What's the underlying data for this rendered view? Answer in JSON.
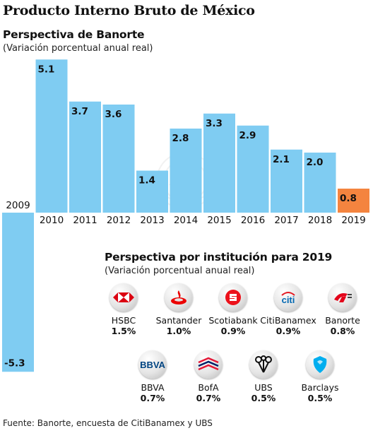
{
  "title": "Producto Interno Bruto de México",
  "subtitle": "Perspectiva de Banorte",
  "note": "(Variación porcentual anual real)",
  "colors": {
    "bar": "#7fccf2",
    "highlight": "#f4843f",
    "text": "#111111"
  },
  "chart_data": {
    "type": "bar",
    "title": "Perspectiva de Banorte",
    "ylabel": "",
    "categories": [
      "2009",
      "2010",
      "2011",
      "2012",
      "2013",
      "2014",
      "2015",
      "2016",
      "2017",
      "2018",
      "2019"
    ],
    "values": [
      -5.3,
      5.1,
      3.7,
      3.6,
      1.4,
      2.8,
      3.3,
      2.9,
      2.1,
      2.0,
      0.8
    ],
    "labels": [
      "-5.3",
      "5.1",
      "3.7",
      "3.6",
      "1.4",
      "2.8",
      "3.3",
      "2.9",
      "2.1",
      "2.0",
      "0.8"
    ],
    "highlight_index": 10,
    "ylim": [
      -5.3,
      5.1
    ],
    "grid": false,
    "legend": "none"
  },
  "institutions": {
    "title": "Perspectiva por institución para 2019",
    "note": "(Variación porcentual anual real)",
    "items": [
      {
        "name": "HSBC",
        "value": "1.5%",
        "icon": "hsbc-logo"
      },
      {
        "name": "Santander",
        "value": "1.0%",
        "icon": "santander-logo"
      },
      {
        "name": "Scotiabank",
        "value": "0.9%",
        "icon": "scotiabank-logo"
      },
      {
        "name": "CitiBanamex",
        "value": "0.9%",
        "icon": "citi-logo",
        "logo_text": "citi"
      },
      {
        "name": "Banorte",
        "value": "0.8%",
        "icon": "banorte-logo"
      },
      {
        "name": "BBVA",
        "value": "0.7%",
        "icon": "bbva-logo",
        "logo_text": "BBVA"
      },
      {
        "name": "BofA",
        "value": "0.7%",
        "icon": "bofa-logo"
      },
      {
        "name": "UBS",
        "value": "0.5%",
        "icon": "ubs-logo"
      },
      {
        "name": "Barclays",
        "value": "0.5%",
        "icon": "barclays-logo"
      }
    ]
  },
  "source": "Fuente: Banorte, encuesta de CitiBanamex y UBS"
}
